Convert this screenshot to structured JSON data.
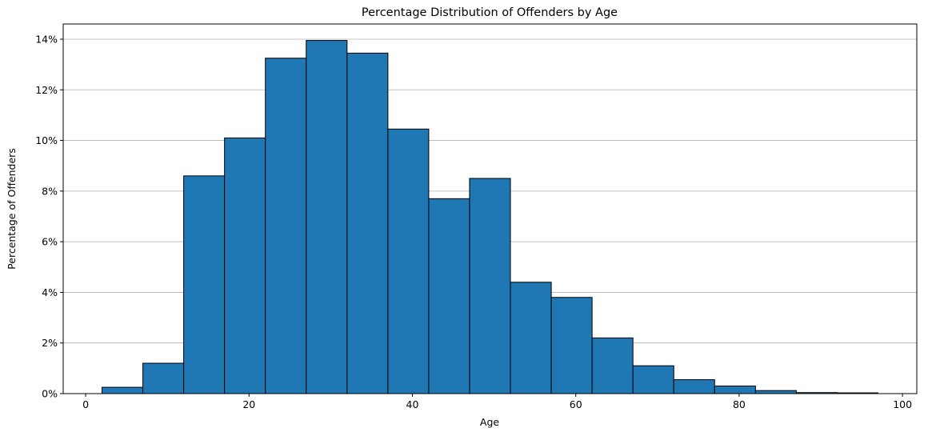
{
  "chart_data": {
    "type": "bar",
    "title": "Percentage Distribution of Offenders by Age",
    "xlabel": "Age",
    "ylabel": "Percentage of Offenders",
    "xlim": [
      -2.75,
      101.75
    ],
    "ylim": [
      0,
      14.6
    ],
    "xticks": [
      0,
      20,
      40,
      60,
      80,
      100
    ],
    "yticks": [
      0,
      2,
      4,
      6,
      8,
      10,
      12,
      14
    ],
    "ytick_format": "percent",
    "grid": "y",
    "bar_color": "#1f77b4",
    "edge_color": "#000000",
    "bins": [
      {
        "x0": 2,
        "x1": 7,
        "value": 0.25
      },
      {
        "x0": 7,
        "x1": 12,
        "value": 1.2
      },
      {
        "x0": 12,
        "x1": 17,
        "value": 8.6
      },
      {
        "x0": 17,
        "x1": 22,
        "value": 10.1
      },
      {
        "x0": 22,
        "x1": 27,
        "value": 13.25
      },
      {
        "x0": 27,
        "x1": 32,
        "value": 13.95
      },
      {
        "x0": 32,
        "x1": 37,
        "value": 13.45
      },
      {
        "x0": 37,
        "x1": 42,
        "value": 10.45
      },
      {
        "x0": 42,
        "x1": 47,
        "value": 7.7
      },
      {
        "x0": 47,
        "x1": 52,
        "value": 8.5
      },
      {
        "x0": 52,
        "x1": 57,
        "value": 4.4
      },
      {
        "x0": 57,
        "x1": 62,
        "value": 3.8
      },
      {
        "x0": 62,
        "x1": 67,
        "value": 2.2
      },
      {
        "x0": 67,
        "x1": 72,
        "value": 1.1
      },
      {
        "x0": 72,
        "x1": 77,
        "value": 0.55
      },
      {
        "x0": 77,
        "x1": 82,
        "value": 0.3
      },
      {
        "x0": 82,
        "x1": 87,
        "value": 0.12
      },
      {
        "x0": 87,
        "x1": 92,
        "value": 0.04
      },
      {
        "x0": 92,
        "x1": 97,
        "value": 0.03
      }
    ]
  }
}
